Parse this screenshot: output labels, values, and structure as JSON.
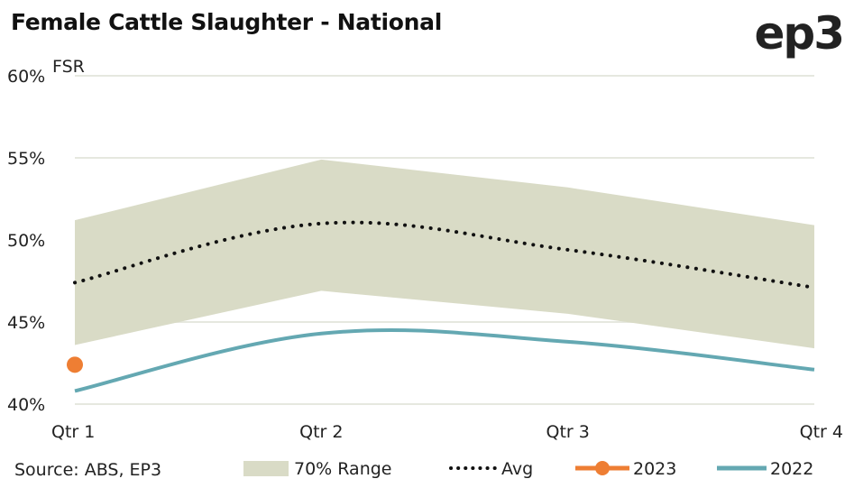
{
  "header": {
    "title": "Female Cattle Slaughter - National",
    "logo": "ep3"
  },
  "colors": {
    "range": "#d9dbc6",
    "avg": "#111111",
    "y2023": "#ee7e33",
    "y2022": "#64a8b2",
    "grid": "#e6e8df"
  },
  "chart_data": {
    "type": "line",
    "title": "Female Cattle Slaughter - National",
    "ylabel": "FSR",
    "xlabel": "",
    "categories": [
      "Qtr 1",
      "Qtr 2",
      "Qtr 3",
      "Qtr 4"
    ],
    "ylim": [
      40,
      60
    ],
    "yticks": [
      60,
      55,
      50,
      45,
      40
    ],
    "ytick_labels": [
      "60%",
      "55%",
      "50%",
      "45%",
      "40%"
    ],
    "grid": true,
    "range": {
      "name": "70% Range",
      "upper": [
        51.2,
        54.9,
        53.2,
        50.9
      ],
      "lower": [
        43.6,
        46.9,
        45.5,
        43.4
      ]
    },
    "series": [
      {
        "name": "Avg",
        "values": [
          47.4,
          51.0,
          49.4,
          47.1
        ],
        "style": "dotted"
      },
      {
        "name": "2023",
        "values": [
          42.4,
          null,
          null,
          null
        ],
        "style": "marker"
      },
      {
        "name": "2022",
        "values": [
          40.8,
          44.3,
          43.8,
          42.1
        ],
        "style": "solid"
      }
    ],
    "legend_position": "bottom",
    "source": "Source: ABS, EP3"
  }
}
